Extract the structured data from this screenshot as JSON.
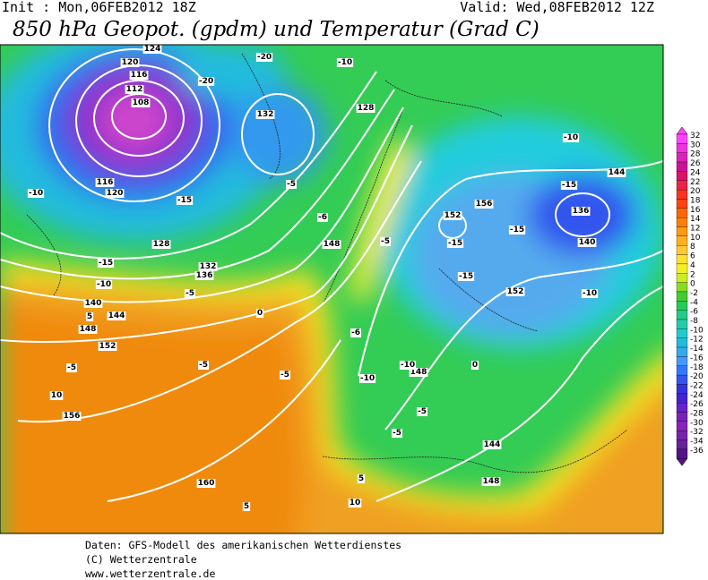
{
  "header": {
    "init": "Init : Mon,06FEB2012 18Z",
    "valid": "Valid: Wed,08FEB2012 12Z",
    "title": "850 hPa Geopot. (gpdm) und Temperatur (Grad C)"
  },
  "colorbar": {
    "labels": [
      "32",
      "30",
      "28",
      "26",
      "24",
      "22",
      "20",
      "18",
      "16",
      "14",
      "12",
      "10",
      "8",
      "6",
      "4",
      "2",
      "0",
      "-2",
      "-4",
      "-6",
      "-8",
      "-10",
      "-12",
      "-14",
      "-16",
      "-18",
      "-20",
      "-22",
      "-24",
      "-26",
      "-28",
      "-30",
      "-32",
      "-34",
      "-36"
    ]
  },
  "map": {
    "contour_labels": [
      "124",
      "120",
      "116",
      "112",
      "108",
      "120",
      "116",
      "128",
      "132",
      "136",
      "140",
      "144",
      "148",
      "152",
      "156",
      "160",
      "128",
      "132",
      "148",
      "156",
      "152",
      "136",
      "140",
      "144",
      "152",
      "148",
      "144",
      "148",
      "-20",
      "-20",
      "-15",
      "-15",
      "-10",
      "-10",
      "-10",
      "-10",
      "-15",
      "-15",
      "-15",
      "-15",
      "-10",
      "-5",
      "-5",
      "-6",
      "-5",
      "0",
      "5",
      "-5",
      "-5",
      "-5",
      "10",
      "5",
      "10",
      "5",
      "-5",
      "-5",
      "-10",
      "-10",
      "0",
      "-6"
    ]
  },
  "footer": {
    "lines": [
      "Daten: GFS-Modell des amerikanischen Wetterdienstes",
      "(C) Wetterzentrale",
      "www.wetterzentrale.de"
    ]
  }
}
